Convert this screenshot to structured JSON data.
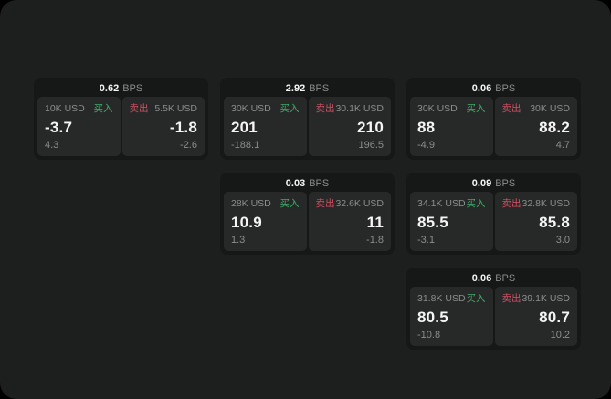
{
  "theme": {
    "page_bg": "#000000",
    "panel_bg": "#1d1e1e",
    "card_bg": "#161717",
    "cell_bg": "#272828",
    "text_primary": "#f5f5f5",
    "text_secondary": "#8b8e8e",
    "buy_color": "#3fae6a",
    "sell_color": "#d15062"
  },
  "labels": {
    "bps_unit": "BPS",
    "buy": "买入",
    "sell": "卖出"
  },
  "cards": [
    {
      "bps": "0.62",
      "row": 1,
      "col": 1,
      "buy": {
        "amount": "10K USD",
        "value": "-3.7",
        "sub": "4.3"
      },
      "sell": {
        "amount": "5.5K USD",
        "value": "-1.8",
        "sub": "-2.6"
      }
    },
    {
      "bps": "2.92",
      "row": 1,
      "col": 2,
      "buy": {
        "amount": "30K USD",
        "value": "201",
        "sub": "-188.1"
      },
      "sell": {
        "amount": "30.1K USD",
        "value": "210",
        "sub": "196.5"
      }
    },
    {
      "bps": "0.06",
      "row": 1,
      "col": 3,
      "buy": {
        "amount": "30K USD",
        "value": "88",
        "sub": "-4.9"
      },
      "sell": {
        "amount": "30K USD",
        "value": "88.2",
        "sub": "4.7"
      }
    },
    {
      "bps": "0.03",
      "row": 2,
      "col": 2,
      "buy": {
        "amount": "28K USD",
        "value": "10.9",
        "sub": "1.3"
      },
      "sell": {
        "amount": "32.6K USD",
        "value": "11",
        "sub": "-1.8"
      }
    },
    {
      "bps": "0.09",
      "row": 2,
      "col": 3,
      "buy": {
        "amount": "34.1K USD",
        "value": "85.5",
        "sub": "-3.1"
      },
      "sell": {
        "amount": "32.8K USD",
        "value": "85.8",
        "sub": "3.0"
      }
    },
    {
      "bps": "0.06",
      "row": 3,
      "col": 3,
      "buy": {
        "amount": "31.8K USD",
        "value": "80.5",
        "sub": "-10.8"
      },
      "sell": {
        "amount": "39.1K USD",
        "value": "80.7",
        "sub": "10.2"
      }
    }
  ]
}
